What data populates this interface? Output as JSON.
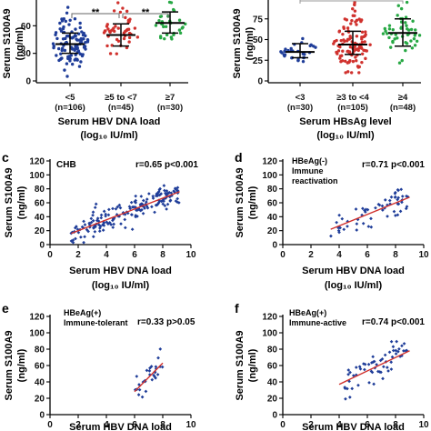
{
  "chart_data": [
    {
      "panel": "a",
      "type": "scatter",
      "ylabel": [
        "Serum S100A9",
        "(ng/ml)"
      ],
      "xlabel": [
        "Serum HBV DNA load",
        "(log₁₀ IU/ml)"
      ],
      "ylim": [
        0,
        90
      ],
      "yticks": [
        0,
        30,
        60,
        90
      ],
      "y_tick_labels_visible": [
        "0",
        "30",
        "60"
      ],
      "categories": [
        "<5",
        "≥5 to <7",
        "≥7"
      ],
      "category_counts": [
        "(n=106)",
        "(n=45)",
        "(n=30)"
      ],
      "colors": [
        "#1f3d99",
        "#d0312d",
        "#27a844"
      ],
      "medians": [
        40,
        50,
        63
      ],
      "iqr": [
        [
          30,
          52
        ],
        [
          38,
          62
        ],
        [
          52,
          75
        ]
      ],
      "spread": [
        [
          5,
          80
        ],
        [
          15,
          85
        ],
        [
          28,
          90
        ]
      ],
      "n": [
        106,
        45,
        30
      ],
      "significance": [
        {
          "between": [
            0,
            1
          ],
          "label": "**"
        },
        {
          "between": [
            1,
            2
          ],
          "label": "**"
        }
      ]
    },
    {
      "panel": "b",
      "type": "scatter",
      "ylabel": [
        "Serum S100A9",
        "(ng/ml)"
      ],
      "xlabel": [
        "Serum HBsAg level",
        "(log₁₀ IU/ml)"
      ],
      "ylim": [
        0,
        100
      ],
      "yticks": [
        0,
        25,
        50,
        75,
        100
      ],
      "y_tick_labels_visible": [
        "0",
        "25",
        "50",
        "75"
      ],
      "categories": [
        "<3",
        "≥3 to <4",
        "≥4"
      ],
      "category_counts": [
        "(n=30)",
        "(n=105)",
        "(n=48)"
      ],
      "colors": [
        "#1f3d99",
        "#d0312d",
        "#27a844"
      ],
      "medians": [
        35,
        44,
        58
      ],
      "iqr": [
        [
          28,
          45
        ],
        [
          32,
          60
        ],
        [
          42,
          75
        ]
      ],
      "spread": [
        [
          15,
          60
        ],
        [
          10,
          95
        ],
        [
          15,
          95
        ]
      ],
      "n": [
        30,
        105,
        48
      ]
    },
    {
      "panel": "c",
      "type": "scatter",
      "annotation": "CHB",
      "stat": "r=0.65  p<0.001",
      "ylabel": [
        "Serum S100A9",
        "(ng/ml)"
      ],
      "xlabel": [
        "Serum HBV DNA load",
        "(log₁₀ IU/ml)"
      ],
      "xlim": [
        0,
        10
      ],
      "xticks": [
        0,
        2,
        4,
        6,
        8,
        10
      ],
      "ylim": [
        0,
        120
      ],
      "yticks": [
        0,
        20,
        40,
        60,
        80,
        100,
        120
      ],
      "fit": [
        [
          1.5,
          16
        ],
        [
          9.2,
          76
        ]
      ],
      "x_range": [
        1.5,
        9.2
      ],
      "n_points": 180
    },
    {
      "panel": "d",
      "type": "scatter",
      "annotation": [
        "HBeAg(-)",
        "Immune",
        "reactivation"
      ],
      "stat": "r=0.71  p<0.001",
      "ylabel": [
        "Serum S100A9",
        "(ng/ml)"
      ],
      "xlabel": [
        "Serum HBV DNA load",
        "(log₁₀ IU/ml)"
      ],
      "xlim": [
        0,
        10
      ],
      "xticks": [
        0,
        2,
        4,
        6,
        8,
        10
      ],
      "ylim": [
        0,
        120
      ],
      "yticks": [
        0,
        20,
        40,
        60,
        80,
        100,
        120
      ],
      "fit": [
        [
          3.4,
          22
        ],
        [
          9,
          68
        ]
      ],
      "x_range": [
        3.4,
        9
      ],
      "n_points": 60
    },
    {
      "panel": "e",
      "type": "scatter",
      "annotation": [
        "HBeAg(+)",
        "Immune-tolerant"
      ],
      "stat": "r=0.33  p>0.05",
      "ylabel": [
        "Serum S100A9",
        "(ng/ml)"
      ],
      "xlabel": [
        "Serum HBV DNA load"
      ],
      "xlim": [
        0,
        10
      ],
      "xticks": [
        0,
        2,
        4,
        6,
        8,
        10
      ],
      "ylim": [
        0,
        120
      ],
      "yticks": [
        0,
        20,
        40,
        60,
        80,
        100,
        120
      ],
      "fit": [
        [
          6,
          28
        ],
        [
          8,
          63
        ]
      ],
      "x_range": [
        6,
        8
      ],
      "n_points": 30
    },
    {
      "panel": "f",
      "type": "scatter",
      "annotation": [
        "HBeAg(+)",
        "Immune-active"
      ],
      "stat": "r=0.74  p<0.001",
      "ylabel": [
        "Serum S100A9",
        "(ng/ml)"
      ],
      "xlabel": [
        "Serum HBV DNA load"
      ],
      "xlim": [
        0,
        10
      ],
      "xticks": [
        0,
        2,
        4,
        6,
        8,
        10
      ],
      "ylim": [
        0,
        120
      ],
      "yticks": [
        0,
        20,
        40,
        60,
        80,
        100,
        120
      ],
      "fit": [
        [
          4,
          37
        ],
        [
          9,
          78
        ]
      ],
      "x_range": [
        4,
        9
      ],
      "n_points": 60
    }
  ],
  "colors": {
    "point": "#1f3d99",
    "fit": "#d0312d",
    "axis": "#000000"
  }
}
